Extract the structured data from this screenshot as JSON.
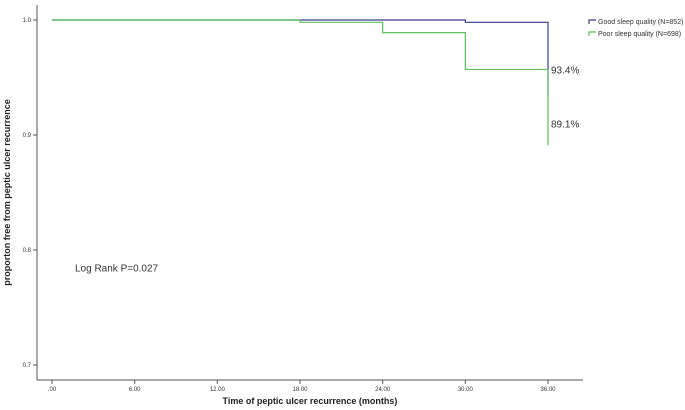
{
  "chart_data": {
    "type": "line",
    "step": true,
    "title": "",
    "xlabel": "Time of peptic ulcer recurrence (months)",
    "ylabel": "proporton free from peptic ulcer recurrence",
    "xlim": [
      0,
      36
    ],
    "ylim": [
      0.7,
      1.0
    ],
    "x_ticks": [
      0,
      6,
      12,
      18,
      24,
      30,
      36
    ],
    "x_tick_labels": [
      ".00",
      "6.00",
      "12.00",
      "18.00",
      "24.00",
      "30.00",
      "36.00"
    ],
    "y_ticks": [
      0.7,
      0.8,
      0.9,
      1.0
    ],
    "y_tick_labels": [
      "0.7",
      "0.8",
      "0.9",
      "1.0"
    ],
    "grid": false,
    "legend_position": "top-right",
    "series": [
      {
        "name": "Good sleep quality (N=852)",
        "color": "#3b3b8f",
        "x": [
          0,
          30,
          36,
          36
        ],
        "y": [
          1.0,
          0.998,
          0.998,
          0.934
        ]
      },
      {
        "name": "Poor sleep quality (N=698)",
        "color": "#5cc05c",
        "x": [
          0,
          18,
          24,
          30,
          36,
          36
        ],
        "y": [
          1.0,
          0.998,
          0.989,
          0.957,
          0.957,
          0.891
        ]
      }
    ],
    "annotations": [
      {
        "text": "93.4%",
        "x": 36,
        "y": 0.957
      },
      {
        "text": "89.1%",
        "x": 36,
        "y": 0.91
      },
      {
        "text": "Log Rank P=0.027",
        "x": 3,
        "y": 0.785
      }
    ]
  }
}
